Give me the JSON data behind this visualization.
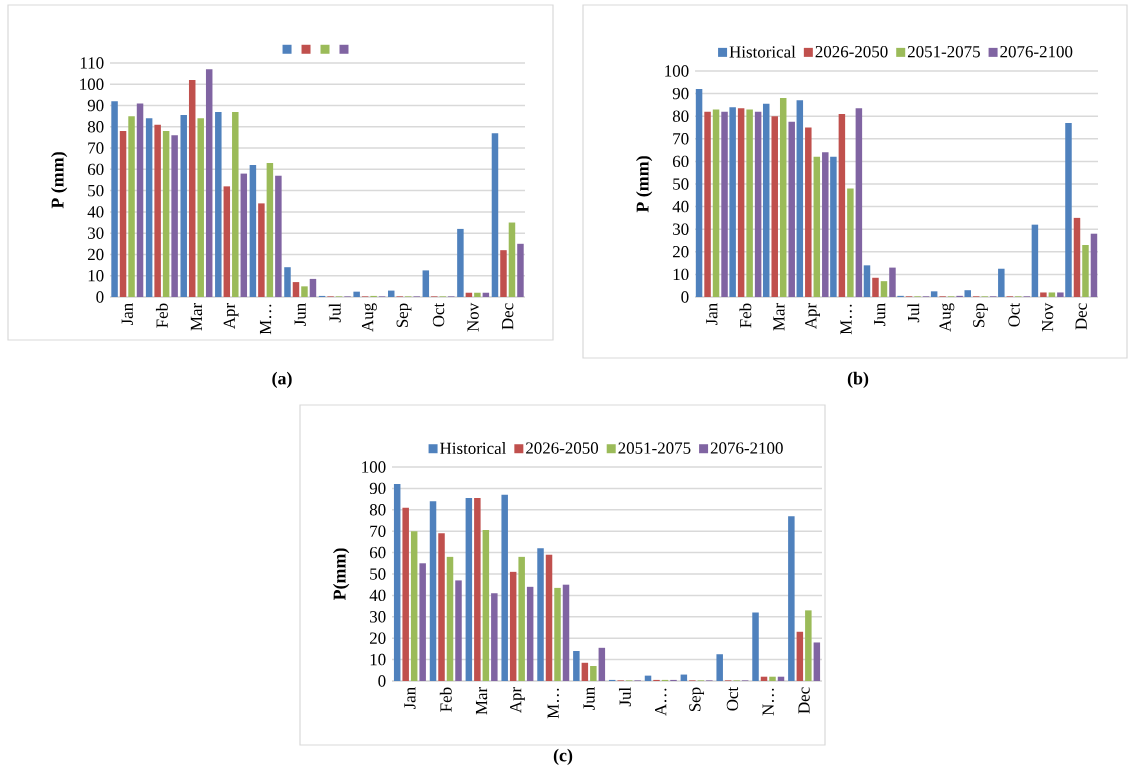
{
  "chart_data": [
    {
      "type": "bar",
      "ylabel": "P (mm)",
      "categories": [
        "Jan",
        "Feb",
        "Mar",
        "Apr",
        "M…",
        "Jun",
        "Jul",
        "Aug",
        "Sep",
        "Oct",
        "Nov",
        "Dec"
      ],
      "series": [
        {
          "color": "#4f81bd",
          "values": [
            92,
            84,
            85.5,
            87,
            62,
            14,
            0.5,
            2.5,
            3,
            12.5,
            32,
            77
          ]
        },
        {
          "color": "#c0504d",
          "values": [
            78,
            81,
            102,
            52,
            44,
            7,
            0.3,
            0.3,
            0.3,
            0.3,
            2,
            22
          ]
        },
        {
          "color": "#9bbb59",
          "values": [
            85,
            78,
            84,
            87,
            63,
            5,
            0.3,
            0.5,
            0.3,
            0.3,
            2,
            35
          ]
        },
        {
          "color": "#8064a2",
          "values": [
            91,
            76,
            107,
            58,
            57,
            8.5,
            0.3,
            0.3,
            0.3,
            0.3,
            2,
            25
          ]
        }
      ],
      "ylim": [
        0,
        110
      ],
      "yticks": [
        0,
        10,
        20,
        30,
        40,
        50,
        60,
        70,
        80,
        90,
        100,
        110
      ],
      "grid": "y",
      "legend": "top",
      "annotations": [
        "(a)"
      ]
    },
    {
      "type": "bar",
      "ylabel": "P (mm)",
      "categories": [
        "Jan",
        "Feb",
        "Mar",
        "Apr",
        "M…",
        "Jun",
        "Jul",
        "Aug",
        "Sep",
        "Oct",
        "Nov",
        "Dec"
      ],
      "series": [
        {
          "name": "Historical",
          "color": "#4f81bd",
          "values": [
            92,
            84,
            85.5,
            87,
            62,
            14,
            0.5,
            2.5,
            3,
            12.5,
            32,
            77
          ]
        },
        {
          "name": "2026-2050",
          "color": "#c0504d",
          "values": [
            82,
            83.5,
            80,
            75,
            81,
            8.5,
            0.3,
            0.3,
            0.3,
            0.3,
            2,
            35
          ]
        },
        {
          "name": "2051-2075",
          "color": "#9bbb59",
          "values": [
            83,
            83,
            88,
            62,
            48,
            7,
            0.3,
            0.3,
            0.3,
            0.3,
            2,
            23
          ]
        },
        {
          "name": "2076-2100",
          "color": "#8064a2",
          "values": [
            82,
            82,
            77.5,
            64,
            83.5,
            13,
            0.3,
            0.5,
            0.3,
            0.3,
            2,
            28
          ]
        }
      ],
      "ylim": [
        0,
        100
      ],
      "yticks": [
        0,
        10,
        20,
        30,
        40,
        50,
        60,
        70,
        80,
        90,
        100
      ],
      "grid": "y",
      "legend": "top",
      "annotations": [
        "(b)"
      ]
    },
    {
      "type": "bar",
      "ylabel": "P(mm)",
      "categories": [
        "Jan",
        "Feb",
        "Mar",
        "Apr",
        "M…",
        "Jun",
        "Jul",
        "A…",
        "Sep",
        "Oct",
        "N…",
        "Dec"
      ],
      "series": [
        {
          "name": "Historical",
          "color": "#4f81bd",
          "values": [
            92,
            84,
            85.5,
            87,
            62,
            14,
            0.5,
            2.5,
            3,
            12.5,
            32,
            77
          ]
        },
        {
          "name": "2026-2050",
          "color": "#c0504d",
          "values": [
            81,
            69,
            85.5,
            51,
            59,
            8.5,
            0.3,
            0.5,
            0.3,
            0.3,
            2,
            23
          ]
        },
        {
          "name": "2051-2075",
          "color": "#9bbb59",
          "values": [
            70,
            58,
            70.5,
            58,
            43.5,
            7,
            0.3,
            0.5,
            0.3,
            0.3,
            2,
            33
          ]
        },
        {
          "name": "2076-2100",
          "color": "#8064a2",
          "values": [
            55,
            47,
            41,
            44,
            45,
            15.5,
            0.3,
            0.5,
            0.3,
            0.3,
            2,
            18
          ]
        }
      ],
      "ylim": [
        0,
        100
      ],
      "yticks": [
        0,
        10,
        20,
        30,
        40,
        50,
        60,
        70,
        80,
        90,
        100
      ],
      "grid": "y",
      "legend": "top",
      "annotations": [
        "(c)"
      ]
    }
  ]
}
